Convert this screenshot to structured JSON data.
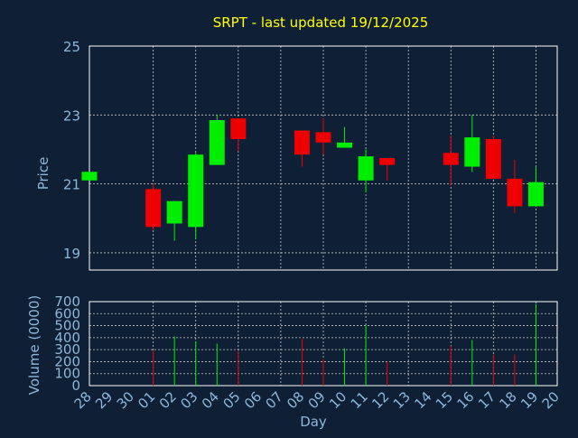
{
  "colors": {
    "background": "#0f2036",
    "plot_background": "#0f2036",
    "axis": "#ffffff",
    "grid": "#c8c8c8",
    "title": "#ffff00",
    "label": "#8fb6d8",
    "up": "#00ee00",
    "down": "#ee0000"
  },
  "chart_data": {
    "type": "candlestick",
    "title": "SRPT - last updated 19/12/2025",
    "grid": true,
    "price_panel": {
      "ylabel": "Price",
      "ylim": [
        18.5,
        25
      ],
      "yticks": [
        19,
        21,
        23,
        25
      ]
    },
    "volume_panel": {
      "ylabel": "Volume (0000)",
      "ylim": [
        0,
        700
      ],
      "yticks": [
        0,
        100,
        200,
        300,
        400,
        500,
        600,
        700
      ]
    },
    "xlabel": "Day",
    "x_ticks": [
      "28",
      "29",
      "30",
      "01",
      "02",
      "03",
      "04",
      "05",
      "06",
      "07",
      "08",
      "09",
      "10",
      "11",
      "12",
      "13",
      "14",
      "15",
      "16",
      "17",
      "18",
      "19",
      "20"
    ],
    "grid_ticks": [
      "01",
      "03",
      "05",
      "07",
      "09",
      "11",
      "13",
      "15",
      "17",
      "19"
    ],
    "candles": [
      {
        "day": "28",
        "open": 21.1,
        "high": 21.35,
        "low": 21.1,
        "close": 21.35,
        "volume": 0
      },
      {
        "day": "01",
        "open": 20.85,
        "high": 21.0,
        "low": 19.65,
        "close": 19.75,
        "volume": 290
      },
      {
        "day": "02",
        "open": 19.85,
        "high": 20.5,
        "low": 19.35,
        "close": 20.5,
        "volume": 410
      },
      {
        "day": "03",
        "open": 19.75,
        "high": 21.9,
        "low": 19.4,
        "close": 21.85,
        "volume": 370
      },
      {
        "day": "04",
        "open": 21.55,
        "high": 23.0,
        "low": 21.55,
        "close": 22.85,
        "volume": 350
      },
      {
        "day": "05",
        "open": 22.9,
        "high": 22.9,
        "low": 21.95,
        "close": 22.3,
        "volume": 290
      },
      {
        "day": "08",
        "open": 22.55,
        "high": 22.55,
        "low": 21.5,
        "close": 21.85,
        "volume": 390
      },
      {
        "day": "09",
        "open": 22.5,
        "high": 22.9,
        "low": 21.85,
        "close": 22.2,
        "volume": 220
      },
      {
        "day": "10",
        "open": 22.05,
        "high": 22.65,
        "low": 22.05,
        "close": 22.2,
        "volume": 310
      },
      {
        "day": "11",
        "open": 21.1,
        "high": 22.0,
        "low": 20.75,
        "close": 21.8,
        "volume": 500
      },
      {
        "day": "12",
        "open": 21.75,
        "high": 21.75,
        "low": 21.1,
        "close": 21.55,
        "volume": 200
      },
      {
        "day": "15",
        "open": 21.9,
        "high": 22.4,
        "low": 20.95,
        "close": 21.55,
        "volume": 330
      },
      {
        "day": "16",
        "open": 21.5,
        "high": 23.0,
        "low": 21.35,
        "close": 22.35,
        "volume": 380
      },
      {
        "day": "17",
        "open": 22.3,
        "high": 22.4,
        "low": 21.15,
        "close": 21.15,
        "volume": 260
      },
      {
        "day": "18",
        "open": 21.15,
        "high": 21.7,
        "low": 20.15,
        "close": 20.35,
        "volume": 260
      },
      {
        "day": "19",
        "open": 20.35,
        "high": 21.5,
        "low": 20.35,
        "close": 21.05,
        "volume": 680
      }
    ]
  }
}
